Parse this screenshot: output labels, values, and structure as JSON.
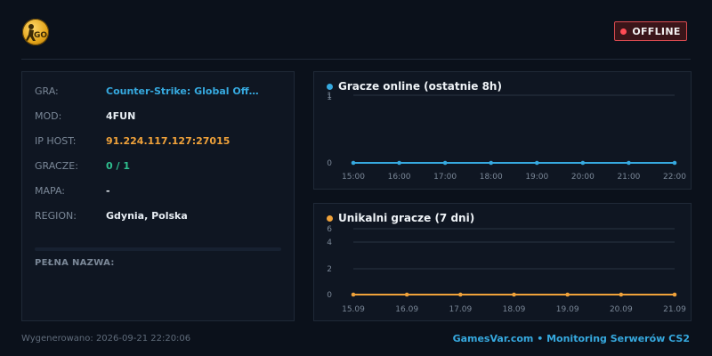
{
  "header": {
    "logo_text": "GO",
    "status": "OFFLINE",
    "colors": {
      "status": "#ff4c55",
      "accent": "#36a9df",
      "orange": "#f0a23a",
      "green": "#2fbf8f"
    }
  },
  "info": {
    "rows": [
      {
        "label": "GRA:",
        "value": "Counter-Strike: Global Off…"
      },
      {
        "label": "MOD:",
        "value": "4FUN"
      },
      {
        "label": "IP HOST:",
        "value": "91.224.117.127:27015"
      },
      {
        "label": "GRACZE:",
        "value": "0 / 1"
      },
      {
        "label": "MAPA:",
        "value": "-"
      },
      {
        "label": "REGION:",
        "value": "Gdynia, Polska"
      }
    ],
    "full_name_label": "PEŁNA NAZWA:"
  },
  "chart_data": [
    {
      "type": "line",
      "title": "Gracze online (ostatnie 8h)",
      "x": [
        "15:00",
        "16:00",
        "17:00",
        "18:00",
        "19:00",
        "20:00",
        "21:00",
        "22:00"
      ],
      "values": [
        0,
        0,
        0,
        0,
        0,
        0,
        0,
        0
      ],
      "yticks": [
        "1",
        "1",
        "0"
      ],
      "color": "#36a9df"
    },
    {
      "type": "line",
      "title": "Unikalni gracze (7 dni)",
      "x": [
        "15.09",
        "16.09",
        "17.09",
        "18.09",
        "19.09",
        "20.09",
        "21.09"
      ],
      "values": [
        0,
        0,
        0,
        0,
        0,
        0,
        0
      ],
      "yticks": [
        "6",
        "4",
        "2",
        "0"
      ],
      "ylim": [
        0,
        6
      ],
      "color": "#f0a23a"
    }
  ],
  "footer": {
    "generated": "Wygenerowano: 2026-09-21 22:20:06",
    "brand": "GamesVar.com • Monitoring Serwerów CS2"
  }
}
